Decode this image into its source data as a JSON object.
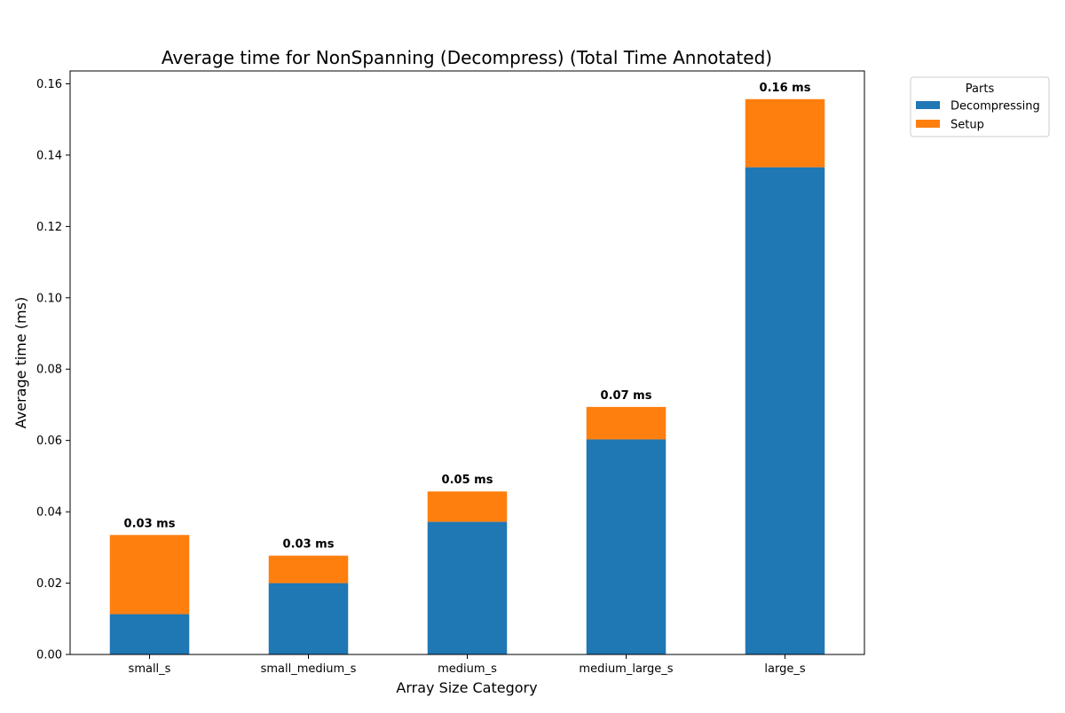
{
  "chart_data": {
    "type": "bar",
    "stacked": true,
    "title": "Average time for NonSpanning (Decompress) (Total Time Annotated)",
    "xlabel": "Array Size Category",
    "ylabel": "Average time (ms)",
    "categories": [
      "small_s",
      "small_medium_s",
      "medium_s",
      "medium_large_s",
      "large_s"
    ],
    "series": [
      {
        "name": "Decompressing",
        "color": "#1f77b4",
        "values": [
          0.0113,
          0.02,
          0.0372,
          0.0603,
          0.1366
        ]
      },
      {
        "name": "Setup",
        "color": "#ff7f0e",
        "values": [
          0.0222,
          0.0077,
          0.0085,
          0.0091,
          0.0191
        ]
      }
    ],
    "totals_labels": [
      "0.03 ms",
      "0.03 ms",
      "0.05 ms",
      "0.07 ms",
      "0.16 ms"
    ],
    "ylim": [
      0,
      0.1636
    ],
    "yticks": [
      0.0,
      0.02,
      0.04,
      0.06,
      0.08,
      0.1,
      0.12,
      0.14,
      0.16
    ],
    "ytick_labels": [
      "0.00",
      "0.02",
      "0.04",
      "0.06",
      "0.08",
      "0.10",
      "0.12",
      "0.14",
      "0.16"
    ],
    "grid": false,
    "legend": {
      "title": "Parts",
      "placement": "outside-top-right"
    }
  }
}
